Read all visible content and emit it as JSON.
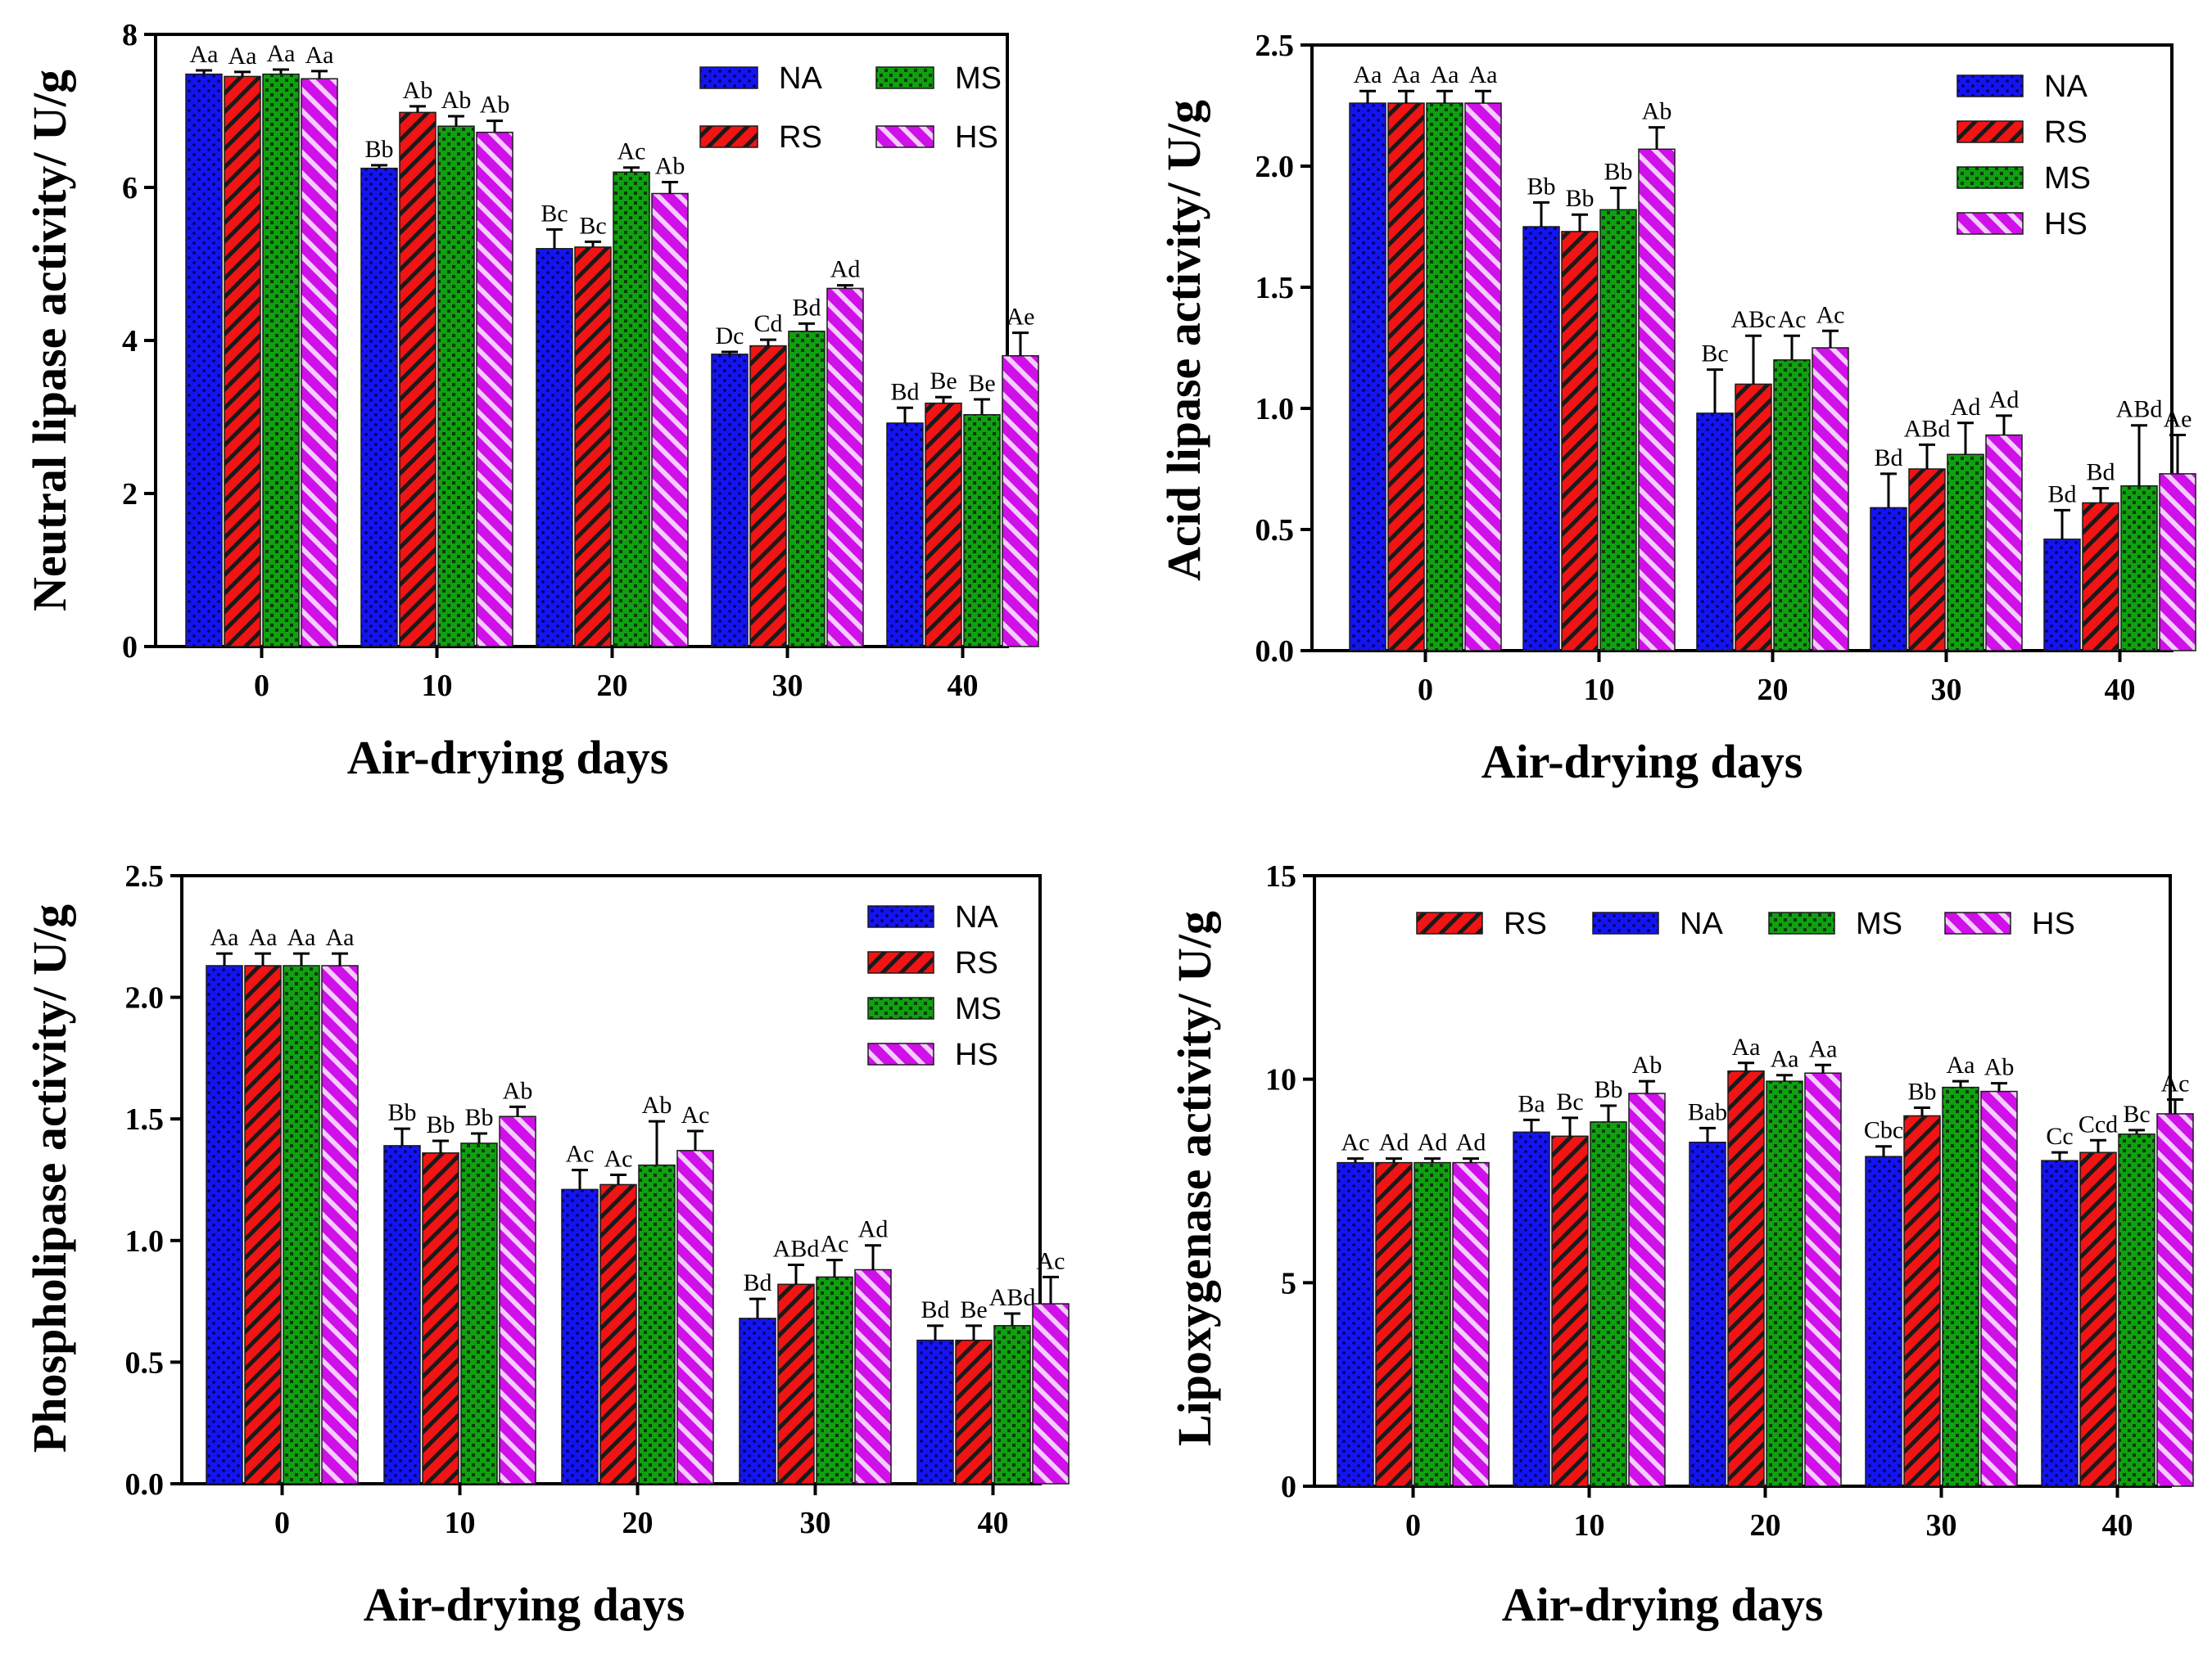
{
  "series_styles": {
    "NA": {
      "color": "#1414f0",
      "pattern": "dots"
    },
    "RS": {
      "color": "#f01414",
      "pattern": "diag"
    },
    "MS": {
      "color": "#10a010",
      "pattern": "checks"
    },
    "HS": {
      "color": "#d010e8",
      "pattern": "diag"
    }
  },
  "chart_data": [
    {
      "type": "bar",
      "xlabel": "Air-drying days",
      "ylabel": "Neutral lipase activity/ U/g",
      "categories": [
        "0",
        "10",
        "20",
        "30",
        "40"
      ],
      "ylim": [
        0,
        8
      ],
      "yticks": [
        "0",
        "2",
        "4",
        "6",
        "8"
      ],
      "legend": {
        "placement": "top-right",
        "columns": 2,
        "order": [
          "NA",
          "MS",
          "RS",
          "HS"
        ]
      },
      "series": [
        {
          "name": "NA",
          "values": [
            7.48,
            6.25,
            5.2,
            3.82,
            2.92
          ],
          "errors": [
            0.05,
            0.04,
            0.25,
            0.03,
            0.2
          ],
          "labels": [
            "Aa",
            "Bb",
            "Bc",
            "Dc",
            "Bd"
          ]
        },
        {
          "name": "RS",
          "values": [
            7.45,
            6.98,
            5.22,
            3.93,
            3.18
          ],
          "errors": [
            0.06,
            0.08,
            0.07,
            0.08,
            0.08
          ],
          "labels": [
            "Aa",
            "Ab",
            "Bc",
            "Cd",
            "Be"
          ]
        },
        {
          "name": "MS",
          "values": [
            7.48,
            6.8,
            6.2,
            4.12,
            3.03
          ],
          "errors": [
            0.06,
            0.13,
            0.06,
            0.1,
            0.2
          ],
          "labels": [
            "Aa",
            "Ab",
            "Ac",
            "Bd",
            "Be"
          ]
        },
        {
          "name": "HS",
          "values": [
            7.42,
            6.72,
            5.92,
            4.68,
            3.8
          ],
          "errors": [
            0.1,
            0.15,
            0.15,
            0.04,
            0.3
          ],
          "labels": [
            "Aa",
            "Ab",
            "Ab",
            "Ad",
            "Ae"
          ]
        }
      ]
    },
    {
      "type": "bar",
      "xlabel": "Air-drying days",
      "ylabel": "Acid lipase activity/ U/g",
      "categories": [
        "0",
        "10",
        "20",
        "30",
        "40"
      ],
      "ylim": [
        0,
        2.5
      ],
      "yticks": [
        "0.0",
        "0.5",
        "1.0",
        "1.5",
        "2.0",
        "2.5"
      ],
      "legend": {
        "placement": "top-right",
        "columns": 1,
        "order": [
          "NA",
          "RS",
          "MS",
          "HS"
        ]
      },
      "series": [
        {
          "name": "NA",
          "values": [
            2.26,
            1.75,
            0.98,
            0.59,
            0.46
          ],
          "errors": [
            0.05,
            0.1,
            0.18,
            0.14,
            0.12
          ],
          "labels": [
            "Aa",
            "Bb",
            "Bc",
            "Bd",
            "Bd"
          ]
        },
        {
          "name": "RS",
          "values": [
            2.26,
            1.73,
            1.1,
            0.75,
            0.61
          ],
          "errors": [
            0.05,
            0.07,
            0.2,
            0.1,
            0.06
          ],
          "labels": [
            "Aa",
            "Bb",
            "ABc",
            "ABd",
            "Bd"
          ]
        },
        {
          "name": "MS",
          "values": [
            2.26,
            1.82,
            1.2,
            0.81,
            0.68
          ],
          "errors": [
            0.05,
            0.09,
            0.1,
            0.13,
            0.25
          ],
          "labels": [
            "Aa",
            "Bb",
            "Ac",
            "Ad",
            "ABd"
          ]
        },
        {
          "name": "HS",
          "values": [
            2.26,
            2.07,
            1.25,
            0.89,
            0.73
          ],
          "errors": [
            0.05,
            0.09,
            0.07,
            0.08,
            0.16
          ],
          "labels": [
            "Aa",
            "Ab",
            "Ac",
            "Ad",
            "Ae"
          ]
        }
      ]
    },
    {
      "type": "bar",
      "xlabel": "Air-drying days",
      "ylabel": "Phospholipase activity/ U/g",
      "categories": [
        "0",
        "10",
        "20",
        "30",
        "40"
      ],
      "ylim": [
        0,
        2.5
      ],
      "yticks": [
        "0.0",
        "0.5",
        "1.0",
        "1.5",
        "2.0",
        "2.5"
      ],
      "legend": {
        "placement": "top-right",
        "columns": 1,
        "order": [
          "NA",
          "RS",
          "MS",
          "HS"
        ]
      },
      "series": [
        {
          "name": "NA",
          "values": [
            2.13,
            1.39,
            1.21,
            0.68,
            0.59
          ],
          "errors": [
            0.05,
            0.07,
            0.08,
            0.08,
            0.06
          ],
          "labels": [
            "Aa",
            "Bb",
            "Ac",
            "Bd",
            "Bd"
          ]
        },
        {
          "name": "RS",
          "values": [
            2.13,
            1.36,
            1.23,
            0.82,
            0.59
          ],
          "errors": [
            0.05,
            0.05,
            0.04,
            0.08,
            0.06
          ],
          "labels": [
            "Aa",
            "Bb",
            "Ac",
            "ABd",
            "Be"
          ]
        },
        {
          "name": "MS",
          "values": [
            2.13,
            1.4,
            1.31,
            0.85,
            0.65
          ],
          "errors": [
            0.05,
            0.04,
            0.18,
            0.07,
            0.05
          ],
          "labels": [
            "Aa",
            "Bb",
            "Ab",
            "Ac",
            "ABd"
          ]
        },
        {
          "name": "HS",
          "values": [
            2.13,
            1.51,
            1.37,
            0.88,
            0.74
          ],
          "errors": [
            0.05,
            0.04,
            0.08,
            0.1,
            0.11
          ],
          "labels": [
            "Aa",
            "Ab",
            "Ac",
            "Ad",
            "Ac"
          ]
        }
      ]
    },
    {
      "type": "bar",
      "xlabel": "Air-drying days",
      "ylabel": "Lipoxygenase activity/ U/g",
      "categories": [
        "0",
        "10",
        "20",
        "30",
        "40"
      ],
      "ylim": [
        0,
        15
      ],
      "yticks": [
        "0",
        "5",
        "10",
        "15"
      ],
      "legend": {
        "placement": "top",
        "columns": 4,
        "order": [
          "RS",
          "NA",
          "MS",
          "HS"
        ]
      },
      "series": [
        {
          "name": "NA",
          "values": [
            7.95,
            8.7,
            8.45,
            8.1,
            8.0
          ],
          "errors": [
            0.1,
            0.3,
            0.35,
            0.25,
            0.2
          ],
          "labels": [
            "Ac",
            "Ba",
            "Bab",
            "Cbc",
            "Cc"
          ]
        },
        {
          "name": "RS",
          "values": [
            7.95,
            8.6,
            10.2,
            9.1,
            8.2
          ],
          "errors": [
            0.1,
            0.45,
            0.2,
            0.2,
            0.3
          ],
          "labels": [
            "Ad",
            "Bc",
            "Aa",
            "Bb",
            "Ccd"
          ]
        },
        {
          "name": "MS",
          "values": [
            7.95,
            8.95,
            9.95,
            9.8,
            8.65
          ],
          "errors": [
            0.1,
            0.4,
            0.15,
            0.15,
            0.1
          ],
          "labels": [
            "Ad",
            "Bb",
            "Aa",
            "Aa",
            "Bc"
          ]
        },
        {
          "name": "HS",
          "values": [
            7.95,
            9.65,
            10.15,
            9.7,
            9.15
          ],
          "errors": [
            0.1,
            0.3,
            0.2,
            0.2,
            0.35
          ],
          "labels": [
            "Ad",
            "Ab",
            "Aa",
            "Ab",
            "Ac"
          ]
        }
      ]
    }
  ]
}
